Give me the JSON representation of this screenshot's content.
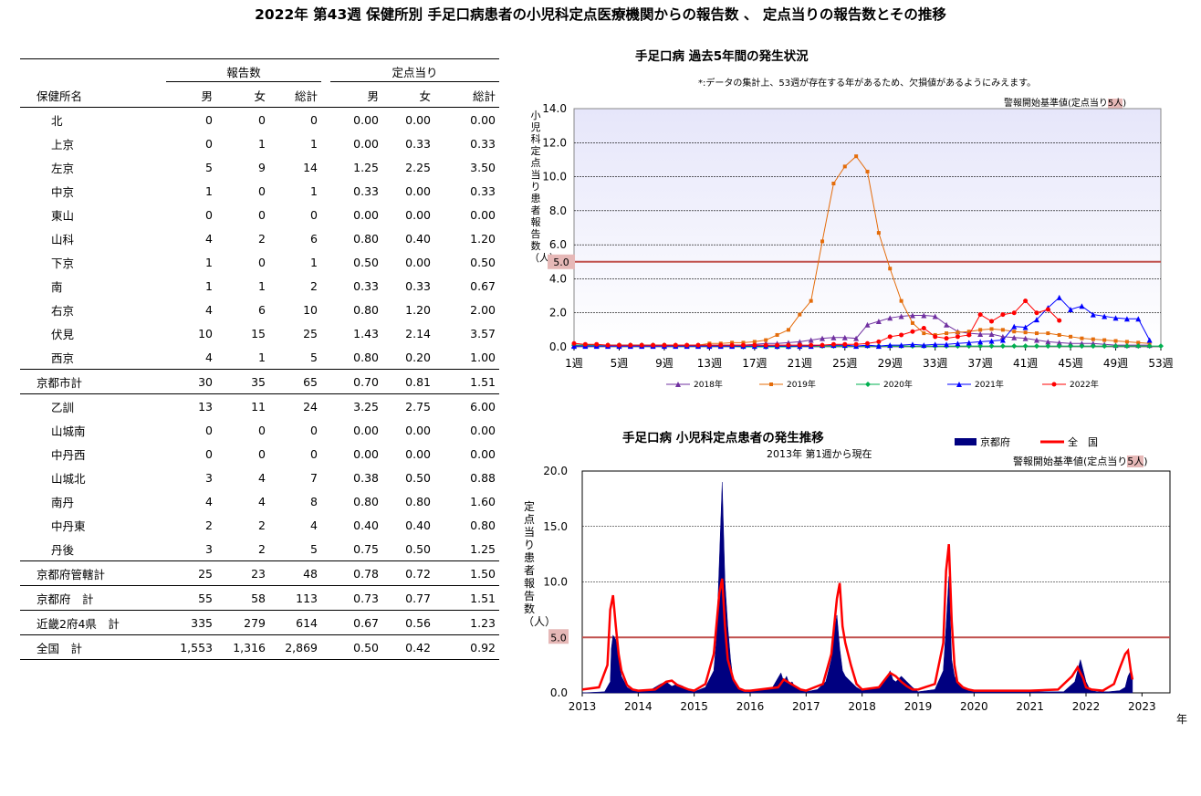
{
  "page_title": "2022年 第43週 保健所別 手足口病患者の小児科定点医療機関からの報告数 、 定点当りの報告数とその推移",
  "table": {
    "group_reports": "報告数",
    "group_per": "定点当り",
    "col_name": "保健所名",
    "col_male": "男",
    "col_female": "女",
    "col_total": "総計",
    "col_male2": "男",
    "col_female2": "女",
    "col_total2": "総計",
    "rows": [
      {
        "name": "北",
        "m": "0",
        "f": "0",
        "t": "0",
        "pm": "0.00",
        "pf": "0.00",
        "pt": "0.00"
      },
      {
        "name": "上京",
        "m": "0",
        "f": "1",
        "t": "1",
        "pm": "0.00",
        "pf": "0.33",
        "pt": "0.33"
      },
      {
        "name": "左京",
        "m": "5",
        "f": "9",
        "t": "14",
        "pm": "1.25",
        "pf": "2.25",
        "pt": "3.50"
      },
      {
        "name": "中京",
        "m": "1",
        "f": "0",
        "t": "1",
        "pm": "0.33",
        "pf": "0.00",
        "pt": "0.33"
      },
      {
        "name": "東山",
        "m": "0",
        "f": "0",
        "t": "0",
        "pm": "0.00",
        "pf": "0.00",
        "pt": "0.00"
      },
      {
        "name": "山科",
        "m": "4",
        "f": "2",
        "t": "6",
        "pm": "0.80",
        "pf": "0.40",
        "pt": "1.20"
      },
      {
        "name": "下京",
        "m": "1",
        "f": "0",
        "t": "1",
        "pm": "0.50",
        "pf": "0.00",
        "pt": "0.50"
      },
      {
        "name": "南",
        "m": "1",
        "f": "1",
        "t": "2",
        "pm": "0.33",
        "pf": "0.33",
        "pt": "0.67"
      },
      {
        "name": "右京",
        "m": "4",
        "f": "6",
        "t": "10",
        "pm": "0.80",
        "pf": "1.20",
        "pt": "2.00"
      },
      {
        "name": "伏見",
        "m": "10",
        "f": "15",
        "t": "25",
        "pm": "1.43",
        "pf": "2.14",
        "pt": "3.57"
      },
      {
        "name": "西京",
        "m": "4",
        "f": "1",
        "t": "5",
        "pm": "0.80",
        "pf": "0.20",
        "pt": "1.00"
      },
      {
        "name": "京都市計",
        "m": "30",
        "f": "35",
        "t": "65",
        "pm": "0.70",
        "pf": "0.81",
        "pt": "1.51",
        "total": true
      },
      {
        "name": "乙訓",
        "m": "13",
        "f": "11",
        "t": "24",
        "pm": "3.25",
        "pf": "2.75",
        "pt": "6.00"
      },
      {
        "name": "山城南",
        "m": "0",
        "f": "0",
        "t": "0",
        "pm": "0.00",
        "pf": "0.00",
        "pt": "0.00"
      },
      {
        "name": "中丹西",
        "m": "0",
        "f": "0",
        "t": "0",
        "pm": "0.00",
        "pf": "0.00",
        "pt": "0.00"
      },
      {
        "name": "山城北",
        "m": "3",
        "f": "4",
        "t": "7",
        "pm": "0.38",
        "pf": "0.50",
        "pt": "0.88"
      },
      {
        "name": "南丹",
        "m": "4",
        "f": "4",
        "t": "8",
        "pm": "0.80",
        "pf": "0.80",
        "pt": "1.60"
      },
      {
        "name": "中丹東",
        "m": "2",
        "f": "2",
        "t": "4",
        "pm": "0.40",
        "pf": "0.40",
        "pt": "0.80"
      },
      {
        "name": "丹後",
        "m": "3",
        "f": "2",
        "t": "5",
        "pm": "0.75",
        "pf": "0.50",
        "pt": "1.25"
      },
      {
        "name": "京都府管轄計",
        "m": "25",
        "f": "23",
        "t": "48",
        "pm": "0.78",
        "pf": "0.72",
        "pt": "1.50",
        "total": true
      },
      {
        "name": "京都府　計",
        "m": "55",
        "f": "58",
        "t": "113",
        "pm": "0.73",
        "pf": "0.77",
        "pt": "1.51",
        "total": true
      },
      {
        "name": "近畿2府4県　計",
        "m": "335",
        "f": "279",
        "t": "614",
        "pm": "0.67",
        "pf": "0.56",
        "pt": "1.23",
        "total": true
      },
      {
        "name": "全国　計",
        "m": "1,553",
        "f": "1,316",
        "t": "2,869",
        "pm": "0.50",
        "pf": "0.42",
        "pt": "0.92",
        "total": true
      }
    ]
  },
  "colors": {
    "y2018": "#7030A0",
    "y2019": "#E46C0A",
    "y2020": "#00B050",
    "y2021": "#0000FF",
    "y2022": "#FF0000",
    "kyoto_fill": "#000080",
    "national": "#FF0000",
    "alert_line": "#C0504D",
    "alert_tag_bg": "#E6B8B7"
  },
  "chart_data": [
    {
      "type": "line",
      "title": "手足口病 過去5年間の発生状況",
      "note": "*:データの集計上、53週が存在する年があるため、欠損値があるようにみえます。",
      "threshold_label": "警報開始基準値(定点当り",
      "threshold_label_value": "5人",
      "threshold_label_close": ")",
      "threshold": 5.0,
      "threshold_tag": "5.0",
      "ylabel": "小児科定点当り患者報告数（人）",
      "ylim": [
        0,
        14
      ],
      "yticks": [
        "0.0",
        "2.0",
        "4.0",
        "6.0",
        "8.0",
        "10.0",
        "12.0",
        "14.0"
      ],
      "ytick_values": [
        0,
        2,
        4,
        6,
        8,
        10,
        12,
        14
      ],
      "xlim": [
        1,
        53
      ],
      "xticks": [
        "1週",
        "5週",
        "9週",
        "13週",
        "17週",
        "21週",
        "25週",
        "29週",
        "33週",
        "37週",
        "41週",
        "45週",
        "49週",
        "53週"
      ],
      "xtick_values": [
        1,
        5,
        9,
        13,
        17,
        21,
        25,
        29,
        33,
        37,
        41,
        45,
        49,
        53
      ],
      "series": [
        {
          "name": "2018年",
          "key": "y2018",
          "marker": "triangle",
          "values": [
            0.1,
            0.1,
            0.1,
            0.1,
            0.1,
            0.1,
            0.1,
            0.1,
            0.1,
            0.1,
            0.1,
            0.1,
            0.1,
            0.1,
            0.1,
            0.1,
            0.15,
            0.2,
            0.2,
            0.25,
            0.3,
            0.4,
            0.5,
            0.55,
            0.55,
            0.5,
            1.3,
            1.5,
            1.7,
            1.8,
            1.85,
            1.85,
            1.8,
            1.3,
            0.9,
            0.8,
            0.75,
            0.75,
            0.6,
            0.55,
            0.5,
            0.4,
            0.3,
            0.25,
            0.2,
            0.2,
            0.2,
            0.15,
            0.1,
            0.1,
            0.1,
            0.1
          ]
        },
        {
          "name": "2019年",
          "key": "y2019",
          "marker": "square",
          "values": [
            0.1,
            0.1,
            0.1,
            0.1,
            0.1,
            0.1,
            0.1,
            0.1,
            0.1,
            0.1,
            0.1,
            0.1,
            0.2,
            0.2,
            0.25,
            0.25,
            0.3,
            0.4,
            0.7,
            1.0,
            1.9,
            2.7,
            6.2,
            9.6,
            10.6,
            11.2,
            10.3,
            6.7,
            4.6,
            2.7,
            1.4,
            0.8,
            0.7,
            0.8,
            0.85,
            0.9,
            1.0,
            1.05,
            1.0,
            0.9,
            0.85,
            0.8,
            0.8,
            0.7,
            0.6,
            0.5,
            0.45,
            0.4,
            0.35,
            0.3,
            0.25,
            0.2
          ]
        },
        {
          "name": "2020年",
          "key": "y2020",
          "marker": "diamond",
          "values": [
            0.1,
            0.1,
            0.1,
            0.1,
            0.1,
            0.1,
            0.1,
            0.1,
            0.1,
            0.05,
            0.05,
            0.05,
            0.05,
            0.05,
            0.05,
            0.0,
            0.0,
            0.0,
            0.0,
            0.0,
            0.05,
            0.05,
            0.05,
            0.05,
            0.05,
            0.05,
            0.05,
            0.05,
            0.05,
            0.05,
            0.05,
            0.05,
            0.05,
            0.05,
            0.05,
            0.05,
            0.05,
            0.05,
            0.05,
            0.05,
            0.05,
            0.05,
            0.05,
            0.05,
            0.05,
            0.05,
            0.05,
            0.05,
            0.05,
            0.05,
            0.05,
            0.05,
            0.05
          ]
        },
        {
          "name": "2021年",
          "key": "y2021",
          "marker": "triangle",
          "values": [
            0.05,
            0.05,
            0.05,
            0.05,
            0.05,
            0.05,
            0.05,
            0.05,
            0.05,
            0.05,
            0.05,
            0.05,
            0.05,
            0.05,
            0.05,
            0.05,
            0.05,
            0.05,
            0.05,
            0.05,
            0.05,
            0.05,
            0.1,
            0.1,
            0.1,
            0.05,
            0.1,
            0.05,
            0.1,
            0.1,
            0.15,
            0.1,
            0.15,
            0.15,
            0.2,
            0.25,
            0.3,
            0.35,
            0.4,
            1.2,
            1.15,
            1.6,
            2.3,
            2.9,
            2.2,
            2.4,
            1.9,
            1.8,
            1.7,
            1.65,
            1.65,
            0.4,
            null
          ]
        },
        {
          "name": "2022年",
          "key": "y2022",
          "marker": "circle",
          "values": [
            0.2,
            0.15,
            0.15,
            0.1,
            0.1,
            0.1,
            0.1,
            0.1,
            0.1,
            0.1,
            0.1,
            0.1,
            0.1,
            0.1,
            0.1,
            0.1,
            0.1,
            0.1,
            0.1,
            0.1,
            0.1,
            0.1,
            0.1,
            0.15,
            0.15,
            0.15,
            0.2,
            0.3,
            0.6,
            0.7,
            0.9,
            1.1,
            0.6,
            0.5,
            0.6,
            0.7,
            1.9,
            1.5,
            1.9,
            2.0,
            2.7,
            2.0,
            2.2,
            1.55
          ]
        }
      ]
    },
    {
      "type": "area",
      "title": "手足口病 小児科定点患者の発生推移",
      "subtitle": "2013年 第1週から現在",
      "threshold_label": "警報開始基準値(定点当り",
      "threshold_label_value": "5人",
      "threshold_label_close": ")",
      "threshold": 5.0,
      "threshold_tag": "5.0",
      "ylabel": "定点当り患者報告数（人）",
      "ylim": [
        0,
        20
      ],
      "yticks": [
        "0.0",
        "5.0",
        "10.0",
        "15.0",
        "20.0"
      ],
      "ytick_values": [
        0,
        5,
        10,
        15,
        20
      ],
      "xlim": [
        2013.0,
        2023.5
      ],
      "xticks": [
        "2013",
        "2014",
        "2015",
        "2016",
        "2017",
        "2018",
        "2019",
        "2020",
        "2021",
        "2022",
        "2023"
      ],
      "xtick_values": [
        2013,
        2014,
        2015,
        2016,
        2017,
        2018,
        2019,
        2020,
        2021,
        2022,
        2023
      ],
      "xunit": "年",
      "series": [
        {
          "name": "京都府",
          "key": "kyoto_fill",
          "kind": "area",
          "x": [
            2013.0,
            2013.4,
            2013.5,
            2013.52,
            2013.55,
            2013.6,
            2013.65,
            2013.7,
            2013.8,
            2013.9,
            2014.0,
            2014.2,
            2014.4,
            2014.5,
            2014.6,
            2014.7,
            2014.8,
            2014.9,
            2015.0,
            2015.2,
            2015.35,
            2015.4,
            2015.45,
            2015.5,
            2015.55,
            2015.6,
            2015.65,
            2015.7,
            2015.8,
            2015.9,
            2016.0,
            2016.4,
            2016.55,
            2016.6,
            2016.65,
            2016.7,
            2016.75,
            2016.8,
            2016.9,
            2017.0,
            2017.2,
            2017.35,
            2017.45,
            2017.5,
            2017.55,
            2017.6,
            2017.65,
            2017.7,
            2017.8,
            2017.9,
            2018.0,
            2018.3,
            2018.45,
            2018.5,
            2018.55,
            2018.6,
            2018.7,
            2018.8,
            2018.9,
            2019.0,
            2019.3,
            2019.45,
            2019.5,
            2019.55,
            2019.6,
            2019.65,
            2019.7,
            2019.8,
            2019.9,
            2020.0,
            2021.0,
            2021.6,
            2021.8,
            2021.9,
            2021.95,
            2022.0,
            2022.05,
            2022.1,
            2022.2,
            2022.4,
            2022.6,
            2022.7,
            2022.75,
            2022.8,
            2022.83
          ],
          "values": [
            0.0,
            0.1,
            1.0,
            4.0,
            5.2,
            4.8,
            3.0,
            1.5,
            0.5,
            0.2,
            0.1,
            0.2,
            0.8,
            1.0,
            0.6,
            0.8,
            0.6,
            0.2,
            0.1,
            0.5,
            2.0,
            5.0,
            12.0,
            19.0,
            10.0,
            6.0,
            3.0,
            1.0,
            0.3,
            0.1,
            0.1,
            0.5,
            1.8,
            1.0,
            1.5,
            0.8,
            1.0,
            0.5,
            0.2,
            0.1,
            0.3,
            1.0,
            3.0,
            5.5,
            7.0,
            4.0,
            2.0,
            1.5,
            1.0,
            0.5,
            0.2,
            0.5,
            1.5,
            2.0,
            1.2,
            1.0,
            1.5,
            1.0,
            0.5,
            0.1,
            0.3,
            2.0,
            6.0,
            10.5,
            3.0,
            1.5,
            1.0,
            0.5,
            0.2,
            0.1,
            0.1,
            0.1,
            1.0,
            3.0,
            2.0,
            1.0,
            0.5,
            0.2,
            0.1,
            0.1,
            0.2,
            0.5,
            1.5,
            2.0,
            1.5
          ]
        },
        {
          "name": "全　国",
          "key": "national",
          "kind": "line",
          "x": [
            2013.0,
            2013.3,
            2013.45,
            2013.5,
            2013.55,
            2013.6,
            2013.65,
            2013.7,
            2013.8,
            2013.9,
            2014.0,
            2014.3,
            2014.5,
            2014.6,
            2014.7,
            2014.8,
            2014.9,
            2015.0,
            2015.2,
            2015.35,
            2015.45,
            2015.5,
            2015.55,
            2015.6,
            2015.7,
            2015.8,
            2015.9,
            2016.0,
            2016.5,
            2016.6,
            2016.7,
            2016.8,
            2016.9,
            2017.0,
            2017.3,
            2017.45,
            2017.55,
            2017.6,
            2017.65,
            2017.7,
            2017.8,
            2017.9,
            2018.0,
            2018.3,
            2018.5,
            2018.6,
            2018.7,
            2018.8,
            2018.9,
            2019.0,
            2019.3,
            2019.45,
            2019.5,
            2019.55,
            2019.6,
            2019.65,
            2019.7,
            2019.8,
            2019.9,
            2020.0,
            2021.0,
            2021.5,
            2021.75,
            2021.85,
            2021.9,
            2021.95,
            2022.0,
            2022.1,
            2022.3,
            2022.5,
            2022.6,
            2022.7,
            2022.75,
            2022.8,
            2022.83
          ],
          "values": [
            0.3,
            0.5,
            2.5,
            7.5,
            8.8,
            6.0,
            3.5,
            2.0,
            0.7,
            0.3,
            0.2,
            0.3,
            1.0,
            1.1,
            0.7,
            0.5,
            0.3,
            0.2,
            0.8,
            3.5,
            9.0,
            10.3,
            6.0,
            3.0,
            1.2,
            0.4,
            0.2,
            0.2,
            0.5,
            1.2,
            0.9,
            0.6,
            0.3,
            0.2,
            0.8,
            3.5,
            8.5,
            9.9,
            6.0,
            4.5,
            2.5,
            0.8,
            0.3,
            0.5,
            1.8,
            1.5,
            1.0,
            0.6,
            0.3,
            0.3,
            0.8,
            4.5,
            11.0,
            13.4,
            6.5,
            2.5,
            1.0,
            0.5,
            0.3,
            0.2,
            0.2,
            0.3,
            1.5,
            2.3,
            1.8,
            1.3,
            0.5,
            0.3,
            0.2,
            0.8,
            2.2,
            3.5,
            3.8,
            2.0,
            1.2
          ]
        }
      ]
    }
  ]
}
